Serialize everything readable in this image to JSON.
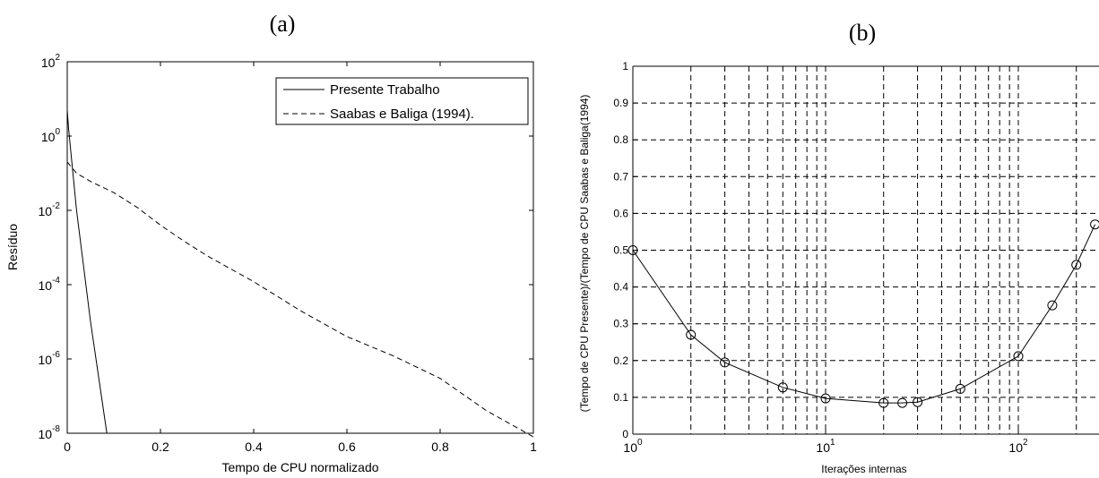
{
  "chart_data": [
    {
      "panel_label": "(a)",
      "type": "line",
      "xlabel": "Tempo de CPU normalizado",
      "ylabel": "Resíduo",
      "xlim": [
        0,
        1
      ],
      "ylim": [
        1e-08,
        100
      ],
      "y_scale": "log",
      "grid": false,
      "legend_position": "top-right",
      "x_ticks": [
        "0",
        "0.2",
        "0.4",
        "0.6",
        "0.8",
        "1"
      ],
      "y_ticks": [
        {
          "base": "10",
          "exp": "2",
          "value": 100
        },
        {
          "base": "10",
          "exp": "0",
          "value": 1
        },
        {
          "base": "10",
          "exp": "-2",
          "value": 0.01
        },
        {
          "base": "10",
          "exp": "-4",
          "value": 0.0001
        },
        {
          "base": "10",
          "exp": "-6",
          "value": 1e-06
        },
        {
          "base": "10",
          "exp": "-8",
          "value": 1e-08
        }
      ],
      "series": [
        {
          "name": "Presente Trabalho",
          "style": "solid",
          "x": [
            0.0,
            0.003,
            0.02,
            0.05,
            0.085
          ],
          "y": [
            5.0,
            1.5,
            0.01,
            1e-05,
            1e-08
          ]
        },
        {
          "name": "Saabas e Baliga (1994).",
          "style": "dashed",
          "x": [
            0.0,
            0.02,
            0.05,
            0.1,
            0.15,
            0.2,
            0.25,
            0.3,
            0.4,
            0.5,
            0.6,
            0.7,
            0.8,
            0.9,
            1.0
          ],
          "y": [
            0.2,
            0.1,
            0.06,
            0.03,
            0.012,
            0.004,
            0.0015,
            0.0006,
            0.00012,
            2e-05,
            4e-06,
            1.2e-06,
            3e-07,
            4e-08,
            8e-09
          ]
        }
      ]
    },
    {
      "panel_label": "(b)",
      "type": "line",
      "xlabel": "Iterações internas",
      "ylabel": "(Tempo de CPU Presente)/(Tempo de CPU Saabas e Baliga(1994)",
      "x_scale": "log",
      "xlim": [
        1,
        250
      ],
      "ylim": [
        0,
        1
      ],
      "grid": true,
      "x_ticks": [
        {
          "base": "10",
          "exp": "0",
          "value": 1
        },
        {
          "base": "10",
          "exp": "1",
          "value": 10
        },
        {
          "base": "10",
          "exp": "2",
          "value": 100
        }
      ],
      "y_ticks": [
        "0",
        "0.1",
        "0.2",
        "0.3",
        "0.4",
        "0.5",
        "0.6",
        "0.7",
        "0.8",
        "0.9",
        "1"
      ],
      "series": [
        {
          "marker": "circle",
          "style": "solid",
          "x": [
            1,
            2,
            3,
            6,
            10,
            20,
            25,
            30,
            50,
            100,
            150,
            200,
            250
          ],
          "y": [
            0.5,
            0.27,
            0.195,
            0.127,
            0.097,
            0.085,
            0.085,
            0.087,
            0.123,
            0.212,
            0.35,
            0.46,
            0.57
          ]
        }
      ]
    }
  ]
}
